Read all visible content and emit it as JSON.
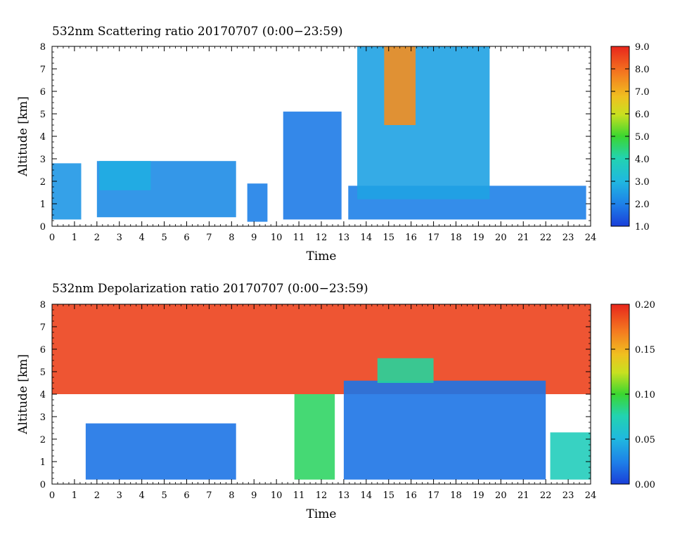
{
  "chart_data": [
    {
      "type": "heatmap",
      "title": "532nm Scattering ratio  20170707 (0:00−23:59)",
      "xlabel": "Time",
      "ylabel": "Altitude [km]",
      "xlim": [
        0,
        24
      ],
      "ylim": [
        0,
        8
      ],
      "x_ticks": [
        "0",
        "1",
        "2",
        "3",
        "4",
        "5",
        "6",
        "7",
        "8",
        "9",
        "10",
        "11",
        "12",
        "13",
        "14",
        "15",
        "16",
        "17",
        "18",
        "19",
        "20",
        "21",
        "22",
        "23",
        "24"
      ],
      "y_ticks": [
        "0",
        "1",
        "2",
        "3",
        "4",
        "5",
        "6",
        "7",
        "8"
      ],
      "colorbar": {
        "min": 1.0,
        "max": 9.0,
        "ticks": [
          "1.0",
          "2.0",
          "3.0",
          "4.0",
          "5.0",
          "6.0",
          "7.0",
          "8.0",
          "9.0"
        ]
      },
      "grid": false,
      "cloud_features": [
        {
          "x": [
            0.0,
            1.3
          ],
          "y": [
            0.3,
            2.8
          ],
          "value": 2.4
        },
        {
          "x": [
            2.0,
            8.2
          ],
          "y": [
            0.4,
            2.9
          ],
          "value": 2.2
        },
        {
          "x": [
            2.1,
            4.4
          ],
          "y": [
            1.6,
            2.9
          ],
          "value": 2.8
        },
        {
          "x": [
            8.7,
            9.6
          ],
          "y": [
            0.2,
            1.9
          ],
          "value": 2.0
        },
        {
          "x": [
            10.3,
            12.9
          ],
          "y": [
            0.3,
            5.1
          ],
          "value": 1.9
        },
        {
          "x": [
            13.2,
            23.8
          ],
          "y": [
            0.3,
            1.8
          ],
          "value": 2.0
        },
        {
          "x": [
            13.6,
            19.5
          ],
          "y": [
            1.2,
            8.0
          ],
          "value": 2.6
        },
        {
          "x": [
            14.8,
            16.2
          ],
          "y": [
            4.5,
            8.0
          ],
          "value": 7.5
        }
      ]
    },
    {
      "type": "heatmap",
      "title": "532nm Depolarization ratio  20170707 (0:00−23:59)",
      "xlabel": "Time",
      "ylabel": "Altitude [km]",
      "xlim": [
        0,
        24
      ],
      "ylim": [
        0,
        8
      ],
      "x_ticks": [
        "0",
        "1",
        "2",
        "3",
        "4",
        "5",
        "6",
        "7",
        "8",
        "9",
        "10",
        "11",
        "12",
        "13",
        "14",
        "15",
        "16",
        "17",
        "18",
        "19",
        "20",
        "21",
        "22",
        "23",
        "24"
      ],
      "y_ticks": [
        "0",
        "1",
        "2",
        "3",
        "4",
        "5",
        "6",
        "7",
        "8"
      ],
      "colorbar": {
        "min": 0.0,
        "max": 0.2,
        "ticks": [
          "0.00",
          "0.05",
          "0.10",
          "0.15",
          "0.20"
        ]
      },
      "grid": false,
      "regions": [
        {
          "x": [
            0.0,
            24.0
          ],
          "y": [
            4.0,
            8.0
          ],
          "value": 0.19
        },
        {
          "x": [
            1.5,
            8.2
          ],
          "y": [
            0.2,
            2.7
          ],
          "value": 0.02
        },
        {
          "x": [
            10.8,
            12.6
          ],
          "y": [
            0.2,
            4.0
          ],
          "value": 0.09
        },
        {
          "x": [
            13.0,
            22.0
          ],
          "y": [
            0.2,
            4.6
          ],
          "value": 0.02
        },
        {
          "x": [
            14.5,
            17.0
          ],
          "y": [
            4.5,
            5.6
          ],
          "value": 0.08
        },
        {
          "x": [
            22.2,
            24.0
          ],
          "y": [
            0.2,
            2.3
          ],
          "value": 0.07
        }
      ]
    }
  ]
}
